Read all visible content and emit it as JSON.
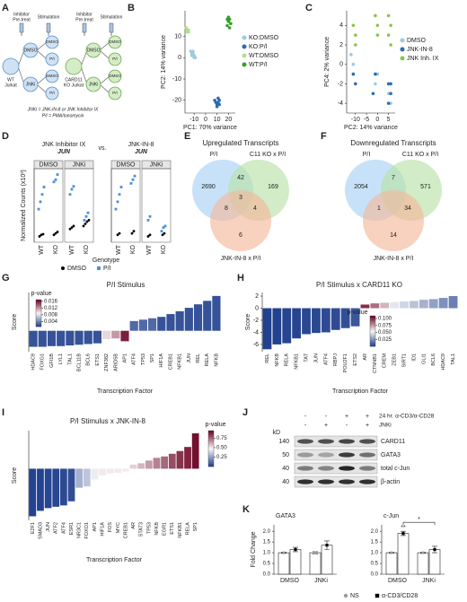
{
  "panel_labels": [
    "A",
    "B",
    "C",
    "D",
    "E",
    "F",
    "G",
    "H",
    "I",
    "J",
    "K"
  ],
  "diagram": {
    "steps": [
      "Inhibitor",
      "Pre-treat",
      "Stimulation"
    ],
    "cells": [
      [
        "WT",
        "Jurkat"
      ],
      [
        "CARD11",
        "KO Jurkat"
      ]
    ],
    "treatments": [
      "DMSO",
      "JNKi"
    ],
    "stimuli": [
      "DMSO",
      "P/I"
    ],
    "footnote": [
      "JNKi = JNK-IN-8 or JNK Inhibitor IX",
      "P/I = PMA/Ionomycin"
    ]
  },
  "blot": {
    "treatments": [
      {
        "label": "24 hr. α-CD3/α-CD28",
        "signs": [
          "-",
          "-",
          "+",
          "+"
        ]
      },
      {
        "label": "JNKi",
        "signs": [
          "-",
          "+",
          "-",
          "+"
        ]
      }
    ],
    "unit": "kD",
    "markers": [
      140,
      50,
      40,
      40
    ],
    "proteins": [
      "CARD11",
      "GATA3",
      "total c-Jun",
      "β-actin"
    ]
  },
  "chart_data": [
    {
      "type": "scatter",
      "xlabel": "PC1: 70% variance",
      "ylabel": "PC2: 14% variance",
      "xlim": [
        -18,
        26
      ],
      "ylim": [
        -26,
        22
      ],
      "xticks": [
        -10,
        0,
        10,
        20
      ],
      "yticks": [
        -20,
        -10,
        0,
        10
      ],
      "series": [
        {
          "name": "KO:DMSO",
          "color": "#9ecae1",
          "x": [
            -13,
            -12,
            -11,
            -10,
            -9,
            -12,
            -11,
            -10
          ],
          "values": [
            3,
            2,
            2,
            1,
            0,
            1,
            3,
            0
          ]
        },
        {
          "name": "KO:P/I",
          "color": "#2b6cb0",
          "x": [
            8,
            9,
            10,
            11,
            12,
            10,
            11,
            12
          ],
          "values": [
            -20,
            -21,
            -22,
            -19,
            -20,
            -23,
            -21,
            -22
          ]
        },
        {
          "name": "WT:DMSO",
          "color": "#b2df8a",
          "x": [
            -17,
            -16,
            -15,
            -16,
            -17,
            -15
          ],
          "values": [
            14,
            13,
            13,
            12,
            14,
            12
          ]
        },
        {
          "name": "WT:P/I",
          "color": "#33a02c",
          "x": [
            19,
            20,
            21,
            22,
            20,
            21,
            22,
            19
          ],
          "values": [
            15,
            17,
            18,
            16,
            19,
            14,
            16,
            18
          ]
        }
      ]
    },
    {
      "type": "scatter",
      "xlabel": "PC2: 14% variance",
      "ylabel": "PC4: 2% variance",
      "xlim": [
        -14,
        8
      ],
      "ylim": [
        -5,
        5.5
      ],
      "xticks": [
        -10,
        -5,
        0,
        5
      ],
      "yticks": [
        -4,
        -2,
        0,
        2,
        4
      ],
      "series": [
        {
          "name": "DMSO",
          "color": "#9ecae1",
          "x": [
            -12,
            -11,
            -1,
            0,
            5,
            6
          ],
          "values": [
            1,
            0,
            -2,
            -1,
            -3,
            -4
          ]
        },
        {
          "name": "JNK-IN-8",
          "color": "#2b6cb0",
          "x": [
            -11,
            -10,
            -1,
            -2,
            5,
            6,
            5,
            6
          ],
          "values": [
            -1,
            -2,
            -1,
            -3,
            -2,
            -3,
            -4,
            -2
          ]
        },
        {
          "name": "JNK Inh. IX",
          "color": "#8bc34a",
          "x": [
            -11,
            -10,
            0,
            -1,
            5,
            6,
            5,
            6,
            -10,
            0
          ],
          "values": [
            4,
            3,
            4,
            5,
            3,
            4,
            5,
            2,
            2,
            3
          ]
        }
      ]
    },
    {
      "type": "strip",
      "ylabel": "Normalized Counts (x10³)",
      "xlabel": "Genotype",
      "separator": "vs.",
      "categories": [
        "WT",
        "KO"
      ],
      "ylim": [
        0,
        10
      ],
      "series": [
        {
          "name": "DMSO",
          "color": "#000000"
        },
        {
          "name": "P/I",
          "color": "#4a90d9"
        }
      ],
      "groups": [
        {
          "title": "JNK Inhibitor IX",
          "gene": "JUN",
          "facets": [
            {
              "name": "DMSO",
              "values": [
                [
                  [
                    0.8,
                    1.0,
                    1.1
                  ],
                  [
                    1.0,
                    1.2,
                    1.4
                  ]
                ],
                [
                  [
                    4.5,
                    5.5,
                    6.5,
                    7.5
                  ],
                  [
                    8.2,
                    8.5,
                    9.2
                  ]
                ]
              ]
            },
            {
              "name": "JNKi",
              "values": [
                [
                  [
                    1.8,
                    2.0,
                    2.2
                  ],
                  [
                    2.2,
                    2.5,
                    2.8,
                    3.0
                  ]
                ],
                [
                  [
                    6.5,
                    7.2,
                    7.6
                  ],
                  [
                    3.0,
                    3.5,
                    4.0
                  ]
                ]
              ]
            }
          ]
        },
        {
          "title": "JNK-IN-8",
          "gene": "JUN",
          "facets": [
            {
              "name": "DMSO",
              "values": [
                [
                  [
                    1.0,
                    1.2
                  ],
                  [
                    1.2,
                    1.5
                  ]
                ],
                [
                  [
                    4.5,
                    5.5,
                    6.5,
                    7.5
                  ],
                  [
                    8.0,
                    8.5,
                    9.0
                  ]
                ]
              ]
            },
            {
              "name": "JNKi",
              "values": [
                [
                  [
                    0.8,
                    1.0
                  ],
                  [
                    1.0,
                    1.2
                  ]
                ],
                [
                  [
                    3.0,
                    3.5
                  ],
                  [
                    1.5,
                    2.0,
                    2.2
                  ]
                ]
              ]
            }
          ]
        }
      ]
    },
    {
      "type": "venn",
      "title": "Upregulated Transcripts",
      "sets": [
        {
          "name": "P/I",
          "color": "#a9d3f5"
        },
        {
          "name": "C11 KO x P/I",
          "color": "#b9e2a7"
        },
        {
          "name": "JNK-IN-8 x P/I",
          "color": "#f4b99c"
        }
      ],
      "values": [
        2690,
        42,
        169,
        8,
        3,
        4,
        6
      ]
    },
    {
      "type": "venn",
      "title": "Downregulated Transcripts",
      "sets": [
        {
          "name": "P/I",
          "color": "#a9d3f5"
        },
        {
          "name": "C11 KO x P/I",
          "color": "#b9e2a7"
        },
        {
          "name": "JNK-IN-8 x P/I",
          "color": "#f4b99c"
        }
      ],
      "values": [
        2054,
        7,
        571,
        1,
        null,
        34,
        14
      ]
    },
    {
      "type": "bar",
      "title": "P/I Stimulus",
      "xlabel": "Transcription Factor",
      "ylabel": "Score",
      "categories": [
        "HDAC9",
        "FOXG1",
        "GFI1B",
        "LYL1",
        "TAL1",
        "BCL11B",
        "BCL6",
        "ETS1",
        "ZNF382",
        "ARID5B",
        "AP1",
        "ATF4",
        "TP53",
        "SP1",
        "HIF1A",
        "CREB1",
        "NFKB1",
        "JUN",
        "REL",
        "RELA",
        "NFKB"
      ],
      "values": [
        -2.3,
        -2.3,
        -2.2,
        -2.2,
        -2.1,
        -2.0,
        -1.9,
        -1.8,
        -1.2,
        -1.1,
        -1.5,
        1.4,
        1.6,
        1.8,
        2.0,
        2.4,
        2.8,
        3.3,
        3.8,
        4.3,
        5.0
      ],
      "p_values": [
        0.002,
        0.002,
        0.002,
        0.002,
        0.002,
        0.002,
        0.002,
        0.002,
        0.01,
        0.012,
        0.016,
        0.003,
        0.003,
        0.003,
        0.002,
        0.002,
        0.002,
        0.002,
        0.002,
        0.002,
        0.002
      ],
      "ylim": [
        -3,
        5.5
      ],
      "colorbar": {
        "label": "p-value",
        "clim": [
          0.001,
          0.017
        ],
        "ticks": [
          0.004,
          0.008,
          0.012,
          0.016
        ],
        "colors": [
          "#1a3a8a",
          "#f7f7f7",
          "#6b0020"
        ]
      }
    },
    {
      "type": "bar",
      "title": "P/I Stimulus x CARD11 KO",
      "xlabel": "Transcription Factor",
      "ylabel": "Score",
      "categories": [
        "REL",
        "NFKB",
        "RELA",
        "NFKB1",
        "TAT",
        "JUN",
        "ATF4",
        "RBPJ",
        "POU2F1",
        "ETS2",
        "AR",
        "CTNNB1",
        "CREM",
        "ZEB1",
        "SIRT1",
        "ID1",
        "GLI1",
        "BCL6",
        "HDAC9",
        "TAL1"
      ],
      "values": [
        -6.8,
        -6.0,
        -5.8,
        -5.0,
        -4.3,
        -4.1,
        -4.0,
        -3.6,
        -3.3,
        -3.0,
        0.6,
        0.8,
        0.9,
        1.0,
        1.1,
        1.2,
        1.4,
        1.5,
        1.7,
        2.0
      ],
      "p_values": [
        0.002,
        0.002,
        0.003,
        0.003,
        0.004,
        0.004,
        0.005,
        0.005,
        0.006,
        0.008,
        0.1,
        0.085,
        0.07,
        0.05,
        0.045,
        0.04,
        0.035,
        0.03,
        0.025,
        0.02
      ],
      "ylim": [
        -7.2,
        2.6
      ],
      "yticks": [
        -6,
        -4,
        -2,
        0,
        2
      ],
      "colorbar": {
        "label": "p-value",
        "clim": [
          0,
          0.11
        ],
        "ticks": [
          0.025,
          {
            "value": 0.05,
            "label": "0.050"
          },
          0.075,
          {
            "value": 0.1,
            "label": "0.100"
          }
        ],
        "colors": [
          "#1a3a8a",
          "#f7f7f7",
          "#6b0020"
        ]
      }
    },
    {
      "type": "bar",
      "title": "P/I Stimulus x JNK-IN-8",
      "xlabel": "Transcription Factor",
      "ylabel": "Score",
      "categories": [
        "E2F1",
        "SMAD3",
        "JUN",
        "ATF2",
        "ATF4",
        "ESR1",
        "NR3C1",
        "FOXO1",
        "AP1",
        "HIF1A",
        "FOS",
        "MYC",
        "CREB1",
        "AR",
        "STAT3",
        "TP53",
        "NFKB",
        "EGR1",
        "ETS1",
        "NFKB1",
        "RELA",
        "SP1"
      ],
      "values": [
        -3.5,
        -3.1,
        -2.9,
        -2.8,
        -2.7,
        -2.4,
        -1.4,
        -1.3,
        -0.8,
        -0.5,
        -0.35,
        -0.3,
        -0.2,
        0.3,
        0.4,
        0.6,
        0.8,
        0.9,
        1.1,
        1.3,
        1.6,
        2.6
      ],
      "p_values": [
        0.02,
        0.02,
        0.03,
        0.03,
        0.04,
        0.05,
        0.3,
        0.35,
        0.45,
        0.5,
        0.5,
        0.5,
        0.5,
        0.55,
        0.6,
        0.65,
        0.7,
        0.75,
        0.8,
        0.85,
        0.88,
        0.92
      ],
      "ylim": [
        -3.8,
        2.8
      ],
      "colorbar": {
        "label": "p-value",
        "clim": [
          0,
          0.95
        ],
        "ticks": [
          0.25,
          {
            "value": 0.5,
            "label": "0.50"
          },
          0.75
        ],
        "colors": [
          "#1a3a8a",
          "#f7f7f7",
          "#6b0020"
        ]
      }
    },
    {
      "type": "grouped_bar",
      "ylabel": "Fold Change",
      "categories": [
        "DMSO",
        "JNKi"
      ],
      "series": [
        {
          "name": "NS",
          "color": "#9a9a9a"
        },
        {
          "name": "α-CD3/CD28",
          "color": "#000000"
        }
      ],
      "ylim": [
        0,
        2.3
      ],
      "yticks": [
        {
          "value": 0,
          "label": "0.0"
        },
        0.5,
        {
          "value": 1,
          "label": "1.0"
        },
        1.5,
        {
          "value": 2,
          "label": "2.0"
        }
      ],
      "panels": [
        {
          "title": "GATA3",
          "values": [
            [
              1.0,
              1.0
            ],
            [
              1.15,
              1.35
            ]
          ],
          "errors": [
            [
              0.03,
              0.05
            ],
            [
              0.1,
              0.2
            ]
          ]
        },
        {
          "title": "c-Jun",
          "values": [
            [
              1.0,
              1.0
            ],
            [
              1.9,
              1.15
            ]
          ],
          "errors": [
            [
              0.02,
              0.03
            ],
            [
              0.1,
              0.15
            ]
          ],
          "annotations": [
            "**",
            "*"
          ]
        }
      ]
    }
  ]
}
